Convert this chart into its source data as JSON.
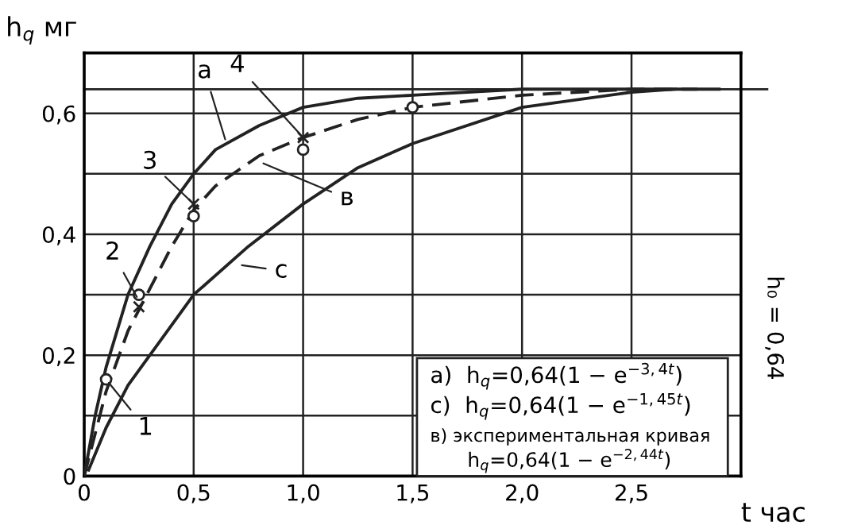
{
  "chart_data": {
    "type": "line",
    "xlabel": "t час",
    "ylabel": "h$_{q}$ мг",
    "xlim": [
      0,
      3.0
    ],
    "ylim": [
      0,
      0.7
    ],
    "xticks": [
      0,
      {
        "value": 0.5,
        "label": "0,5"
      },
      {
        "value": 1.0,
        "label": "1,0"
      },
      {
        "value": 1.5,
        "label": "1,5"
      },
      {
        "value": 2.0,
        "label": "2,0"
      },
      {
        "value": 2.5,
        "label": "2,5"
      }
    ],
    "yticks": [
      0,
      {
        "value": 0.1,
        "label": null
      },
      {
        "value": 0.2,
        "label": "0,2"
      },
      {
        "value": 0.3,
        "label": null
      },
      {
        "value": 0.4,
        "label": "0,4"
      },
      {
        "value": 0.5,
        "label": null
      },
      {
        "value": 0.6,
        "label": "0,6"
      }
    ],
    "grid": true,
    "series": [
      {
        "color": "#222222",
        "line_style": "solid",
        "marker": "none",
        "x": [
          0,
          0.05,
          0.1,
          0.2,
          0.3,
          0.4,
          0.5,
          0.6,
          0.8,
          1.0,
          1.25,
          1.5,
          2.0,
          2.5,
          2.9
        ],
        "values": [
          0,
          0.1,
          0.18,
          0.3,
          0.38,
          0.45,
          0.5,
          0.54,
          0.58,
          0.61,
          0.625,
          0.63,
          0.64,
          0.64,
          0.64
        ]
      },
      {
        "color": "#222222",
        "line_style": "dashed",
        "marker": "none",
        "x": [
          0,
          0.05,
          0.1,
          0.2,
          0.3,
          0.4,
          0.5,
          0.6,
          0.8,
          1.0,
          1.25,
          1.5,
          2.0,
          2.5,
          2.8
        ],
        "values": [
          0,
          0.07,
          0.14,
          0.24,
          0.31,
          0.38,
          0.44,
          0.48,
          0.53,
          0.56,
          0.59,
          0.61,
          0.63,
          0.64,
          0.64
        ]
      },
      {
        "color": "#222222",
        "line_style": "solid",
        "marker": "none",
        "x": [
          0.02,
          0.1,
          0.2,
          0.3,
          0.5,
          0.75,
          1.0,
          1.25,
          1.5,
          2.0,
          2.5,
          2.7
        ],
        "values": [
          0.01,
          0.08,
          0.15,
          0.2,
          0.3,
          0.38,
          0.45,
          0.51,
          0.55,
          0.61,
          0.635,
          0.64
        ]
      },
      {
        "type": "scatter",
        "color": "#222222",
        "marker": "circle",
        "x": [
          0.1,
          0.25,
          0.5,
          1.0,
          1.5
        ],
        "values": [
          0.16,
          0.3,
          0.43,
          0.54,
          0.61
        ]
      },
      {
        "type": "scatter",
        "color": "#222222",
        "marker": "cross",
        "x": [
          0.25,
          0.5,
          1.0
        ],
        "values": [
          0.28,
          0.45,
          0.56
        ]
      }
    ],
    "ref_lines": [
      {
        "axis": "y",
        "value": 0.64,
        "label": "h₀ = 0,64",
        "color": "#222222"
      }
    ],
    "annotations": [
      {
        "text": "a",
        "x": 0.65,
        "y": 0.55
      },
      {
        "text": "в",
        "x": 0.8,
        "y": 0.52
      },
      {
        "text": "c",
        "x": 0.7,
        "y": 0.35
      },
      {
        "text": "1",
        "x": 0.1,
        "y": 0.16
      },
      {
        "text": "2",
        "x": 0.25,
        "y": 0.29
      },
      {
        "text": "3",
        "x": 0.5,
        "y": 0.45
      },
      {
        "text": "4",
        "x": 1.0,
        "y": 0.56
      },
      "a)  h$_{q}$=0,64(1 − e$^{−3,4t}$)",
      "c)  h$_{q}$=0,64(1 − e$^{−1,45t}$)",
      "в) экспериментальная кривая",
      "h$_{q}$=0,64(1 − e$^{−2,44t}$)"
    ]
  }
}
